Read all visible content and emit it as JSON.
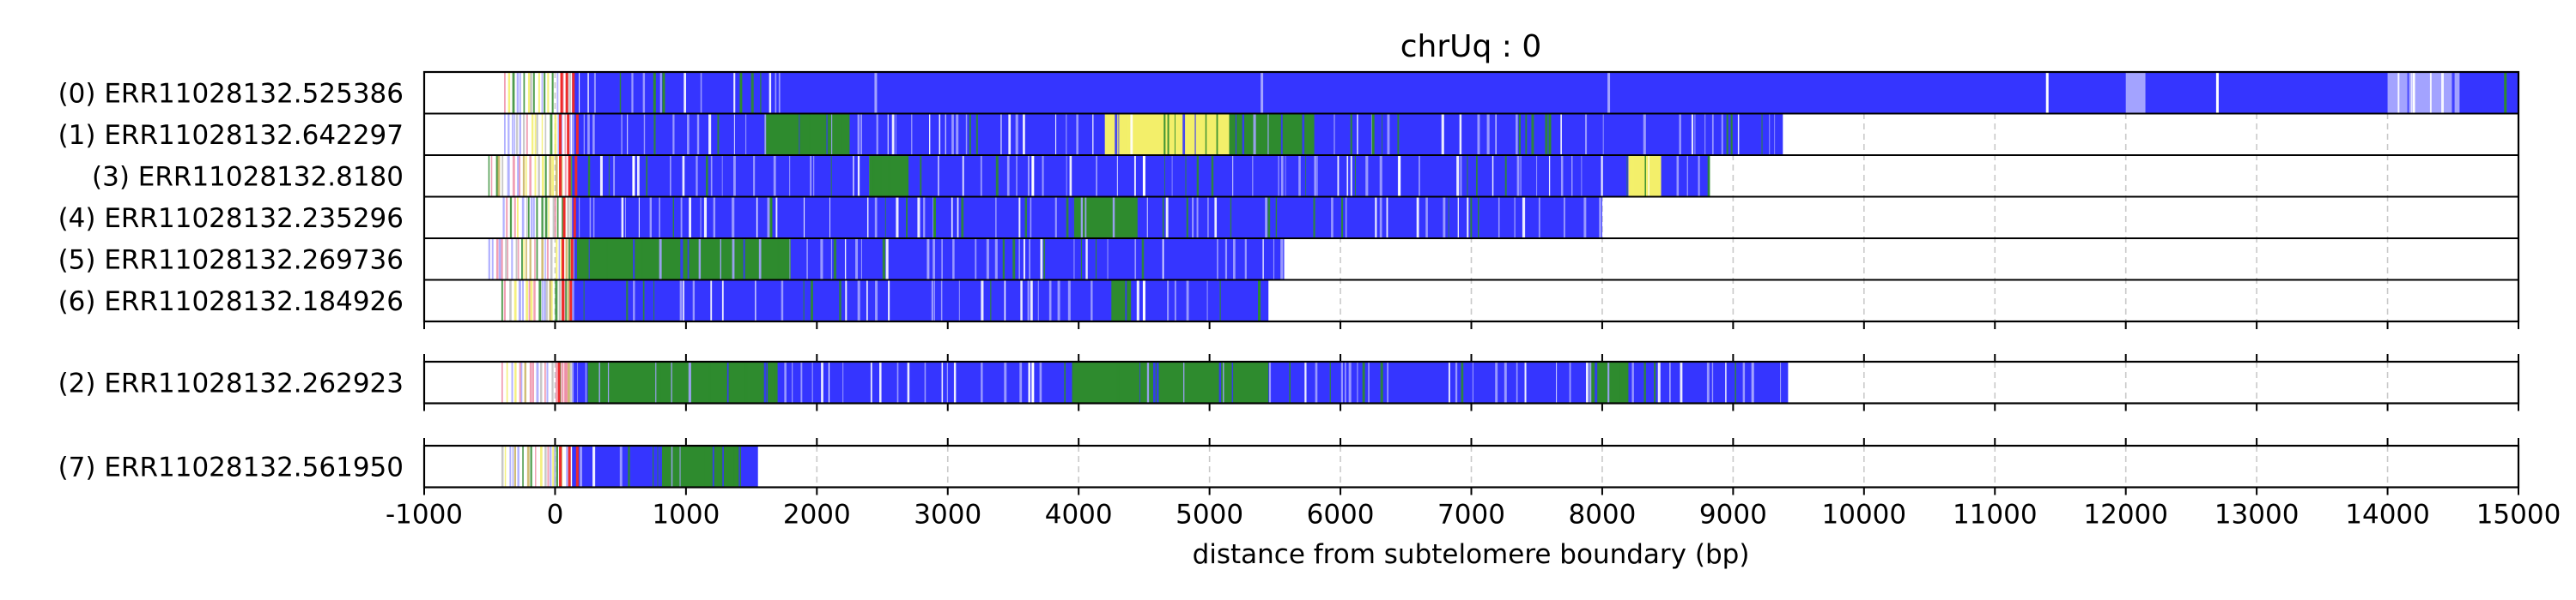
{
  "chart_data": {
    "type": "heatmap",
    "title": "chrUq : 0",
    "xlabel": "distance from subtelomere boundary (bp)",
    "xlim": [
      -1000,
      15000
    ],
    "xticks": [
      "-1000",
      "0",
      "1000",
      "2000",
      "3000",
      "4000",
      "5000",
      "6000",
      "7000",
      "8000",
      "9000",
      "10000",
      "11000",
      "12000",
      "13000",
      "14000",
      "15000"
    ],
    "xtick_values": [
      -1000,
      0,
      1000,
      2000,
      3000,
      4000,
      5000,
      6000,
      7000,
      8000,
      9000,
      10000,
      11000,
      12000,
      13000,
      14000,
      15000
    ],
    "grid": "vertical dashed",
    "colors": {
      "blue": "#3535ff",
      "lightblue": "#a3a3ff",
      "green": "#2e8b2e",
      "yellow": "#f3ef6a",
      "red": "#ee2b2b",
      "pink": "#ee8fa8",
      "gray": "#bdbdbd",
      "tan": "#c9b25f",
      "white": "#ffffff"
    },
    "panels": [
      {
        "reads": [
          {
            "label": "(0) ERR11028132.525386",
            "start": -390,
            "end": 15000,
            "segments": [
              {
                "from": 130,
                "to": 1720,
                "color": "blue",
                "variegated": true
              },
              {
                "from": 1720,
                "to": 15000,
                "color": "blue",
                "variegated": false
              },
              {
                "from": 12000,
                "to": 12150,
                "color": "lightblue",
                "variegated": false
              },
              {
                "from": 14000,
                "to": 14550,
                "color": "lightblue",
                "variegated": true
              }
            ],
            "highlights": [
              {
                "at": 50,
                "color": "red"
              },
              {
                "at": 90,
                "color": "red"
              },
              {
                "at": 140,
                "color": "red"
              },
              {
                "at": 760,
                "color": "green"
              },
              {
                "at": 830,
                "color": "green"
              },
              {
                "at": 1420,
                "color": "green"
              },
              {
                "at": 2450,
                "color": "lightblue"
              },
              {
                "at": 5400,
                "color": "lightblue"
              },
              {
                "at": 8050,
                "color": "lightblue"
              },
              {
                "at": 11400,
                "color": "white"
              },
              {
                "at": 12700,
                "color": "white"
              },
              {
                "at": 14200,
                "color": "white"
              },
              {
                "at": 14900,
                "color": "green"
              }
            ]
          },
          {
            "label": "(1) ERR11028132.642297",
            "start": -390,
            "end": 9380,
            "segments": [
              {
                "from": 130,
                "to": 9380,
                "color": "blue",
                "variegated": true
              },
              {
                "from": 4200,
                "to": 5150,
                "color": "yellow",
                "variegated": true
              },
              {
                "from": 5150,
                "to": 5800,
                "color": "green",
                "variegated": true
              },
              {
                "from": 1600,
                "to": 2250,
                "color": "green",
                "variegated": true
              }
            ],
            "highlights": [
              {
                "at": 40,
                "color": "red"
              },
              {
                "at": 100,
                "color": "red"
              },
              {
                "at": 170,
                "color": "red"
              },
              {
                "at": 2100,
                "color": "green"
              },
              {
                "at": 2180,
                "color": "green"
              },
              {
                "at": 6250,
                "color": "green"
              },
              {
                "at": 7600,
                "color": "green"
              }
            ]
          },
          {
            "label": "(3) ERR11028132.8180",
            "start": -510,
            "end": 8820,
            "segments": [
              {
                "from": 130,
                "to": 8820,
                "color": "blue",
                "variegated": true
              },
              {
                "from": 8200,
                "to": 8450,
                "color": "yellow",
                "variegated": true
              },
              {
                "from": 2400,
                "to": 2700,
                "color": "green",
                "variegated": true
              }
            ],
            "highlights": [
              {
                "at": 40,
                "color": "red"
              },
              {
                "at": 110,
                "color": "red"
              },
              {
                "at": 160,
                "color": "red"
              },
              {
                "at": 600,
                "color": "white"
              },
              {
                "at": 3650,
                "color": "white"
              },
              {
                "at": 4500,
                "color": "white"
              },
              {
                "at": 6450,
                "color": "white"
              }
            ]
          },
          {
            "label": "(4) ERR11028132.235296",
            "start": -400,
            "end": 8000,
            "segments": [
              {
                "from": 130,
                "to": 8000,
                "color": "blue",
                "variegated": true
              },
              {
                "from": 3950,
                "to": 4450,
                "color": "green",
                "variegated": true
              }
            ],
            "highlights": [
              {
                "at": 70,
                "color": "red"
              },
              {
                "at": 150,
                "color": "red"
              },
              {
                "at": 1650,
                "color": "green"
              },
              {
                "at": 2900,
                "color": "green"
              }
            ]
          },
          {
            "label": "(5) ERR11028132.269736",
            "start": -510,
            "end": 5570,
            "segments": [
              {
                "from": 130,
                "to": 5570,
                "color": "blue",
                "variegated": true
              },
              {
                "from": 150,
                "to": 1800,
                "color": "green",
                "variegated": true
              }
            ],
            "highlights": [
              {
                "at": 60,
                "color": "red"
              },
              {
                "at": 130,
                "color": "red"
              },
              {
                "at": 2850,
                "color": "lightblue"
              }
            ]
          },
          {
            "label": "(6) ERR11028132.184926",
            "start": -410,
            "end": 5450,
            "segments": [
              {
                "from": 130,
                "to": 5450,
                "color": "blue",
                "variegated": true
              },
              {
                "from": 4250,
                "to": 4400,
                "color": "green",
                "variegated": true
              }
            ],
            "highlights": [
              {
                "at": 60,
                "color": "red"
              },
              {
                "at": 120,
                "color": "red"
              },
              {
                "at": 4500,
                "color": "white"
              },
              {
                "at": 5380,
                "color": "green"
              }
            ]
          }
        ]
      },
      {
        "reads": [
          {
            "label": "(2) ERR11028132.262923",
            "start": -410,
            "end": 9420,
            "segments": [
              {
                "from": 130,
                "to": 9420,
                "color": "blue",
                "variegated": true
              },
              {
                "from": 250,
                "to": 1700,
                "color": "green",
                "variegated": true
              },
              {
                "from": 3950,
                "to": 5450,
                "color": "green",
                "variegated": true
              },
              {
                "from": 7900,
                "to": 8200,
                "color": "green",
                "variegated": true
              }
            ],
            "highlights": [
              {
                "at": 30,
                "color": "red"
              },
              {
                "at": 80,
                "color": "pink"
              },
              {
                "at": 3650,
                "color": "white"
              },
              {
                "at": 9150,
                "color": "lightblue"
              }
            ]
          }
        ]
      },
      {
        "reads": [
          {
            "label": "(7) ERR11028132.561950",
            "start": -410,
            "end": 1550,
            "segments": [
              {
                "from": 130,
                "to": 1550,
                "color": "blue",
                "variegated": true
              },
              {
                "from": 800,
                "to": 1400,
                "color": "green",
                "variegated": true
              }
            ],
            "highlights": [
              {
                "at": 40,
                "color": "red"
              },
              {
                "at": 110,
                "color": "red"
              },
              {
                "at": 170,
                "color": "red"
              }
            ]
          }
        ]
      }
    ]
  }
}
